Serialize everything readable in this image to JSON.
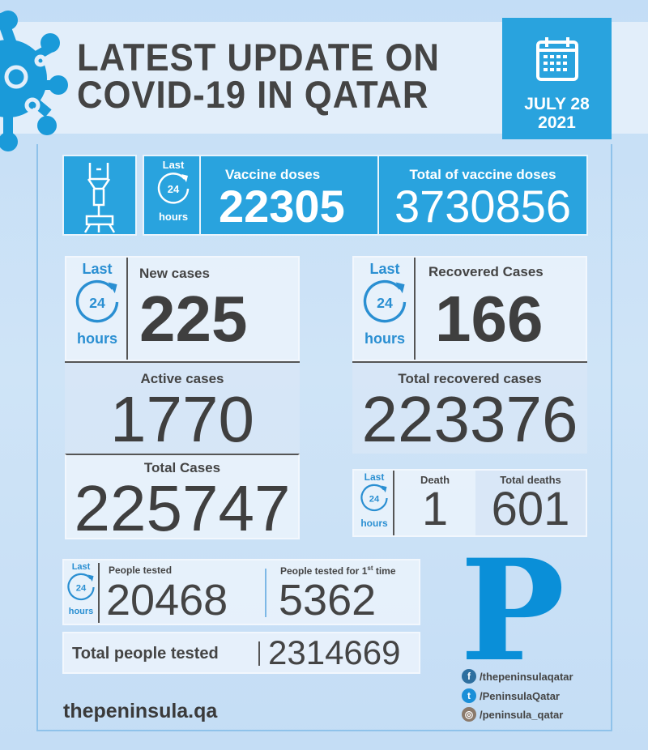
{
  "header": {
    "title_line1": "LATEST UPDATE ON",
    "title_line2": "COVID-19 IN QATAR",
    "date_line1": "JULY 28",
    "date_line2": "2021"
  },
  "last24": {
    "last": "Last",
    "num": "24",
    "hours": "hours"
  },
  "vaccine": {
    "doses_label": "Vaccine doses",
    "doses_value": "22305",
    "total_label": "Total of vaccine doses",
    "total_value": "3730856"
  },
  "cases": {
    "new_label": "New cases",
    "new_value": "225",
    "active_label": "Active cases",
    "active_value": "1770",
    "total_label": "Total Cases",
    "total_value": "225747"
  },
  "recovered": {
    "label": "Recovered Cases",
    "value": "166",
    "total_label": "Total recovered cases",
    "total_value": "223376"
  },
  "deaths": {
    "label": "Death",
    "value": "1",
    "total_label": "Total deaths",
    "total_value": "601"
  },
  "tests": {
    "tested_label": "People tested",
    "tested_value": "20468",
    "first_label": "People tested for 1",
    "first_sup": "st",
    "first_suffix": " time",
    "first_value": "5362",
    "total_label": "Total people tested",
    "total_value": "2314669"
  },
  "footer": {
    "website": "thepeninsula.qa",
    "logo": "P",
    "facebook": "/thepeninsulaqatar",
    "twitter": "/PeninsulaQatar",
    "instagram": "/peninsula_qatar"
  },
  "colors": {
    "accent": "#29a3de",
    "logo": "#0a8fd8",
    "text": "#444444"
  }
}
